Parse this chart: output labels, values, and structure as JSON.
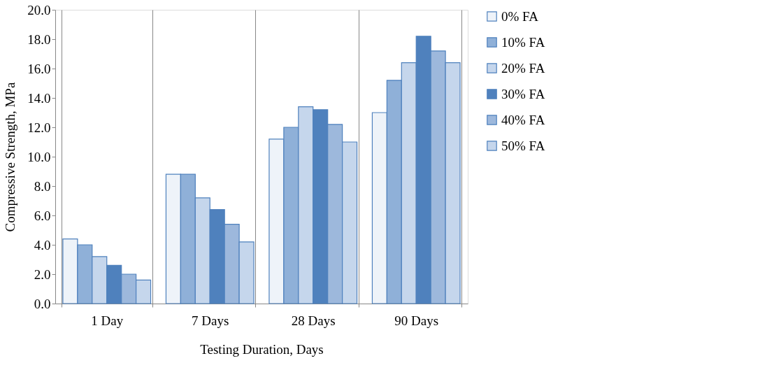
{
  "chart_data": {
    "type": "bar",
    "xlabel": "Testing Duration, Days",
    "ylabel": "Compressive Strength, MPa",
    "categories": [
      "1 Day",
      "7 Days",
      "28 Days",
      "90 Days"
    ],
    "series": [
      {
        "name": "0% FA",
        "color": "#eef3f9",
        "values": [
          4.4,
          8.8,
          11.2,
          13.0
        ]
      },
      {
        "name": "10% FA",
        "color": "#8fb0d8",
        "values": [
          4.0,
          8.8,
          12.0,
          15.2
        ]
      },
      {
        "name": "20% FA",
        "color": "#c5d6ec",
        "values": [
          3.2,
          7.2,
          13.4,
          16.4
        ]
      },
      {
        "name": "30% FA",
        "color": "#4f81bd",
        "values": [
          2.6,
          6.4,
          13.2,
          18.2
        ]
      },
      {
        "name": "40% FA",
        "color": "#9db8dc",
        "values": [
          2.0,
          5.4,
          12.2,
          17.2
        ]
      },
      {
        "name": "50% FA",
        "color": "#c5d6ec",
        "values": [
          1.6,
          4.2,
          11.0,
          16.4
        ]
      }
    ],
    "ylim": [
      0,
      20
    ],
    "yticks": [
      {
        "value": 0,
        "label": "0.0"
      },
      {
        "value": 2,
        "label": "2.0"
      },
      {
        "value": 4,
        "label": "4.0"
      },
      {
        "value": 6,
        "label": "6.0"
      },
      {
        "value": 8,
        "label": "8.0"
      },
      {
        "value": 10,
        "label": "10.0"
      },
      {
        "value": 12,
        "label": "12.0"
      },
      {
        "value": 14,
        "label": "14.0"
      },
      {
        "value": 16,
        "label": "16.0"
      },
      {
        "value": 18,
        "label": "18.0"
      },
      {
        "value": 20,
        "label": "20.0"
      }
    ],
    "grid": "x",
    "legend": "right"
  }
}
